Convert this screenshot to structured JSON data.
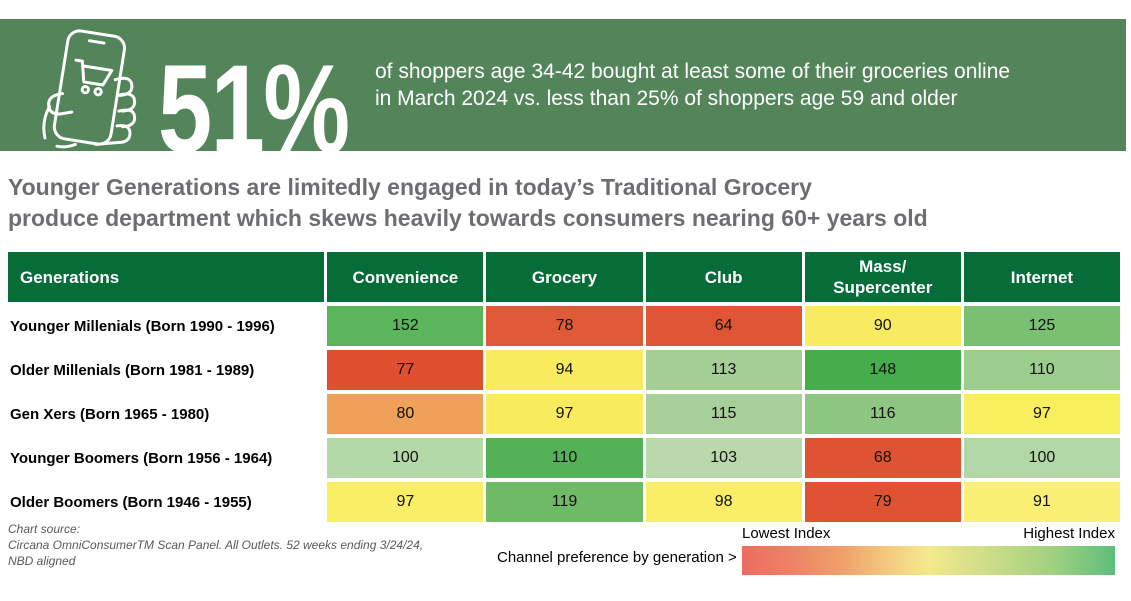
{
  "banner": {
    "stat": "51%",
    "description_line1": "of shoppers age 34-42 bought at least some of their groceries online",
    "description_line2": "in March 2024 vs. less than 25% of shoppers age 59 and older",
    "bg_color": "#54855a",
    "icon": "phone-shopping-cart-icon"
  },
  "title": {
    "line1": "Younger Generations are limitedly engaged in today’s Traditional Grocery",
    "line2": "produce department which skews heavily towards consumers nearing 60+ years old"
  },
  "chart_data": {
    "type": "heatmap",
    "title": "Younger Generations are limitedly engaged in today’s Traditional Grocery produce department which skews heavily towards consumers nearing 60+ years old",
    "row_header": "Generations",
    "columns": [
      "Convenience",
      "Grocery",
      "Club",
      "Mass/\nSupercenter",
      "Internet"
    ],
    "rows": [
      {
        "label": "Younger Millenials (Born 1990 - 1996)",
        "values": [
          152,
          78,
          64,
          90,
          125
        ],
        "colors": [
          "#5bb55a",
          "#e05a3a",
          "#df5535",
          "#f9eb5f",
          "#7bbf72"
        ]
      },
      {
        "label": "Older Millenials (Born 1981 - 1989)",
        "values": [
          77,
          94,
          113,
          148,
          110
        ],
        "colors": [
          "#df5031",
          "#f8ec5e",
          "#a5cd96",
          "#45ad4b",
          "#9ccd8f"
        ]
      },
      {
        "label": "Gen Xers (Born 1965 - 1980)",
        "values": [
          80,
          97,
          115,
          116,
          97
        ],
        "colors": [
          "#efa059",
          "#f8ec5e",
          "#a8cf9a",
          "#8fc583",
          "#f9ee5d"
        ]
      },
      {
        "label": "Younger Boomers (Born 1956 - 1964)",
        "values": [
          100,
          110,
          103,
          68,
          100
        ],
        "colors": [
          "#b5d8a8",
          "#55b158",
          "#b9d9ac",
          "#df5233",
          "#b2d6a5"
        ]
      },
      {
        "label": "Older Boomers (Born 1946 - 1955)",
        "values": [
          97,
          119,
          98,
          79,
          91
        ],
        "colors": [
          "#f9ee66",
          "#6fba67",
          "#f9ee66",
          "#df5233",
          "#faf075"
        ]
      }
    ],
    "legend": {
      "lowest_label": "Lowest Index",
      "highest_label": "Highest Index",
      "gradient": [
        "#ec6c60",
        "#f0a06a",
        "#f5e98c",
        "#9ed080",
        "#5dbd7c"
      ],
      "position": "bottom-right"
    },
    "header_bg": "#066c38",
    "value_range": [
      64,
      152
    ]
  },
  "footer": {
    "source_line1": "Chart source:",
    "source_line2": "Circana OmniConsumerTM Scan Panel. All Outlets. 52 weeks ending 3/24/24,",
    "source_line3": "NBD aligned",
    "legend_caption": "Channel preference by generation >",
    "lowest_label": "Lowest Index",
    "highest_label": "Highest Index"
  }
}
